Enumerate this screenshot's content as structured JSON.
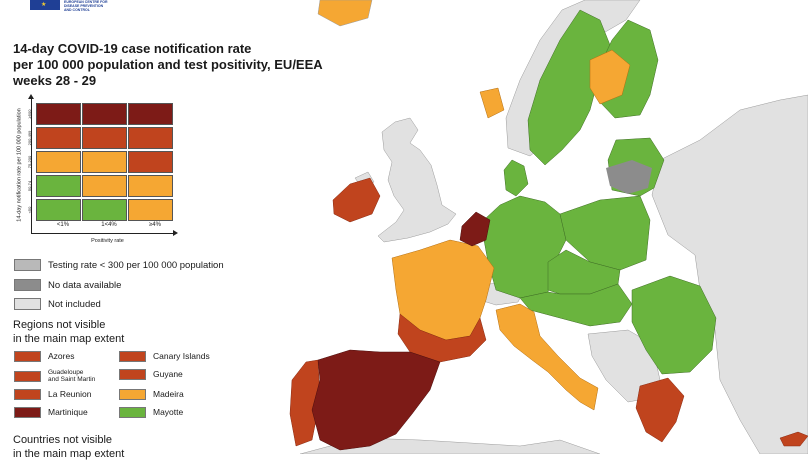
{
  "colors": {
    "sea": "#ffffff",
    "not_included": "#e1e1e1",
    "no_data": "#8c8c8c",
    "testing_low": "#b9b9b9",
    "green": "#6ab43e",
    "orange": "#f5a733",
    "red": "#c0441e",
    "dark_red": "#7d1b17",
    "border": "#6b6b6b"
  },
  "logo": {
    "lines": [
      "EUROPEAN CENTRE FOR",
      "DISEASE PREVENTION",
      "AND CONTROL"
    ]
  },
  "title": {
    "lines": [
      "14-day COVID-19 case notification rate",
      "per 100 000 population and test positivity, EU/EEA",
      "weeks 28 - 29"
    ]
  },
  "matrix": {
    "y_axis_label": "14-day notification rate per 100 000 population",
    "y_ticks": [
      "≥500",
      "200-499",
      "75-200",
      "50-74",
      "<50"
    ],
    "x_axis_label": "Positivity rate",
    "x_ticks": [
      "<1%",
      "1<4%",
      "≥4%"
    ],
    "rows": [
      [
        "dark_red",
        "dark_red",
        "dark_red"
      ],
      [
        "red",
        "red",
        "red"
      ],
      [
        "orange",
        "orange",
        "red"
      ],
      [
        "green",
        "orange",
        "orange"
      ],
      [
        "green",
        "green",
        "orange"
      ]
    ]
  },
  "status_legend": [
    {
      "label": "Testing rate < 300 per 100 000 population",
      "color": "testing_low"
    },
    {
      "label": "No data available",
      "color": "no_data"
    },
    {
      "label": "Not included",
      "color": "not_included"
    }
  ],
  "regions_heading": [
    "Regions not visible",
    "in the main map extent"
  ],
  "regions": [
    {
      "name": "Azores",
      "color": "red"
    },
    {
      "name": "Canary Islands",
      "color": "red"
    },
    {
      "name": "Guadeloupe\nand Saint Martin",
      "color": "red"
    },
    {
      "name": "Guyane",
      "color": "red"
    },
    {
      "name": "La Reunion",
      "color": "red"
    },
    {
      "name": "Madeira",
      "color": "orange"
    },
    {
      "name": "Martinique",
      "color": "dark_red"
    },
    {
      "name": "Mayotte",
      "color": "green"
    }
  ],
  "countries_heading": [
    "Countries not visible",
    "in the main map extent"
  ]
}
